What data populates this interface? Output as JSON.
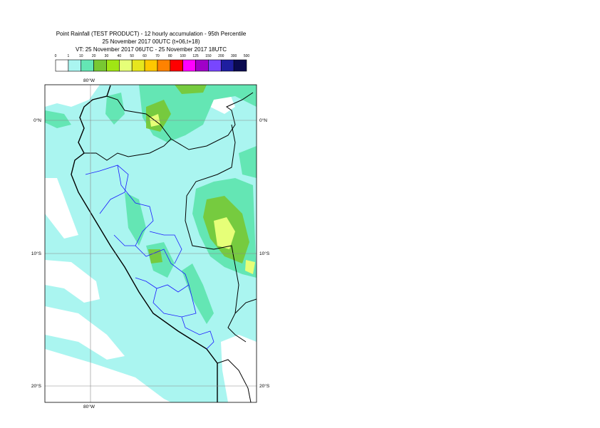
{
  "header": {
    "title": "Point Rainfall (TEST PRODUCT) - 12 hourly accumulation - 95th Percentile",
    "subtitle": "25 November 2017 00UTC (t+06,t+18)",
    "validity": "VT: 25 November 2017 06UTC - 25 November 2017 18UTC"
  },
  "legend": {
    "labels": [
      0,
      1,
      10,
      20,
      30,
      40,
      50,
      60,
      70,
      80,
      100,
      125,
      150,
      200,
      300,
      500
    ],
    "colors": [
      "#ffffff",
      "#aaf5f0",
      "#64e6b4",
      "#78c832",
      "#a0e614",
      "#e6ff78",
      "#e6e61e",
      "#ffc800",
      "#ff8200",
      "#ff0000",
      "#ff00ff",
      "#a000c8",
      "#7846ff",
      "#1e1ea0",
      "#0a0a50"
    ]
  },
  "grid": {
    "lon_labels": [
      "80°W"
    ],
    "lat_labels": [
      "0°N",
      "10°S",
      "20°S"
    ]
  }
}
